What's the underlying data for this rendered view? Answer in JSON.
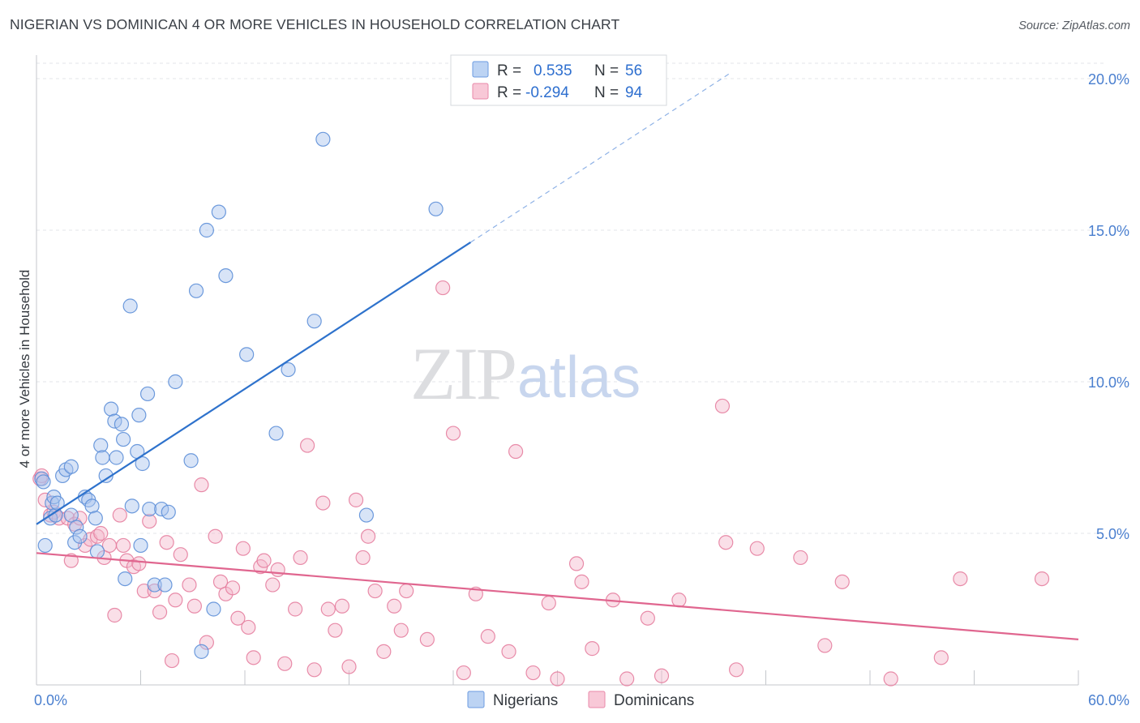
{
  "title": "NIGERIAN VS DOMINICAN 4 OR MORE VEHICLES IN HOUSEHOLD CORRELATION CHART",
  "source": "Source: ZipAtlas.com",
  "watermark": {
    "zip": "ZIP",
    "atlas": "atlas"
  },
  "colors": {
    "nigerians_fill": "#a9c4ee",
    "nigerians_stroke": "#5d8fd8",
    "nigerians_line": "#2e72cc",
    "dominicans_fill": "#f4b9cc",
    "dominicans_stroke": "#e57fa0",
    "dominicans_line": "#e0668f",
    "value_text": "#2e6fcf",
    "label_text": "#33383e"
  },
  "legend": {
    "rows": [
      {
        "r_label": "R =",
        "r_value": "0.535",
        "n_label": "N =",
        "n_value": "56"
      },
      {
        "r_label": "R =",
        "r_value": "-0.294",
        "n_label": "N =",
        "n_value": "94"
      }
    ]
  },
  "chart_data": {
    "type": "scatter",
    "title": "NIGERIAN VS DOMINICAN 4 OR MORE VEHICLES IN HOUSEHOLD CORRELATION CHART",
    "xlabel": "",
    "ylabel": "4 or more Vehicles in Household",
    "xlim": [
      0,
      60
    ],
    "ylim": [
      0,
      21
    ],
    "x_tick_labels": [
      {
        "value": 0,
        "label": "0.0%"
      },
      {
        "value": 60,
        "label": "60.0%"
      }
    ],
    "x_minor_ticks": [
      0,
      6,
      12,
      18,
      24,
      30,
      36,
      42,
      48,
      54,
      60
    ],
    "y_ticks": [
      {
        "value": 5,
        "label": "5.0%"
      },
      {
        "value": 10,
        "label": "10.0%"
      },
      {
        "value": 15,
        "label": "15.0%"
      },
      {
        "value": 20,
        "label": "20.0%"
      }
    ],
    "grid": true,
    "legend_position": "top-center",
    "series": [
      {
        "name": "Nigerians",
        "r": 0.535,
        "n": 56,
        "trend": {
          "x0": 0,
          "y0": 5.3,
          "x1": 25,
          "y1": 14.6,
          "dashed_to_x": 40,
          "dashed_to_y": 20.2
        },
        "points": [
          [
            0.3,
            6.8
          ],
          [
            0.4,
            6.7
          ],
          [
            0.5,
            4.6
          ],
          [
            0.8,
            5.5
          ],
          [
            0.9,
            6.0
          ],
          [
            1.0,
            6.2
          ],
          [
            1.1,
            5.6
          ],
          [
            1.2,
            6.0
          ],
          [
            1.5,
            6.9
          ],
          [
            1.7,
            7.1
          ],
          [
            2.0,
            7.2
          ],
          [
            2.0,
            5.6
          ],
          [
            2.2,
            4.7
          ],
          [
            2.3,
            5.2
          ],
          [
            2.5,
            4.9
          ],
          [
            2.8,
            6.2
          ],
          [
            3.0,
            6.1
          ],
          [
            3.2,
            5.9
          ],
          [
            3.4,
            5.5
          ],
          [
            3.5,
            4.4
          ],
          [
            3.7,
            7.9
          ],
          [
            3.8,
            7.5
          ],
          [
            4.0,
            6.9
          ],
          [
            4.3,
            9.1
          ],
          [
            4.5,
            8.7
          ],
          [
            4.6,
            7.5
          ],
          [
            4.9,
            8.6
          ],
          [
            5.0,
            8.1
          ],
          [
            5.1,
            3.5
          ],
          [
            5.4,
            12.5
          ],
          [
            5.5,
            5.9
          ],
          [
            5.8,
            7.7
          ],
          [
            5.9,
            8.9
          ],
          [
            6.0,
            4.6
          ],
          [
            6.1,
            7.3
          ],
          [
            6.4,
            9.6
          ],
          [
            6.5,
            5.8
          ],
          [
            6.8,
            3.3
          ],
          [
            7.2,
            5.8
          ],
          [
            7.4,
            3.3
          ],
          [
            7.6,
            5.7
          ],
          [
            8.0,
            10.0
          ],
          [
            8.9,
            7.4
          ],
          [
            9.2,
            13.0
          ],
          [
            9.5,
            1.1
          ],
          [
            9.8,
            15.0
          ],
          [
            10.2,
            2.5
          ],
          [
            10.5,
            15.6
          ],
          [
            10.9,
            13.5
          ],
          [
            12.1,
            10.9
          ],
          [
            13.8,
            8.3
          ],
          [
            14.5,
            10.4
          ],
          [
            16.0,
            12.0
          ],
          [
            16.5,
            18.0
          ],
          [
            19.0,
            5.6
          ],
          [
            23.0,
            15.7
          ]
        ]
      },
      {
        "name": "Dominicans",
        "r": -0.294,
        "n": 94,
        "trend": {
          "x0": 0,
          "y0": 4.35,
          "x1": 60,
          "y1": 1.5
        },
        "points": [
          [
            0.2,
            6.8
          ],
          [
            0.3,
            6.9
          ],
          [
            0.5,
            6.1
          ],
          [
            0.8,
            5.6
          ],
          [
            1.0,
            5.7
          ],
          [
            1.3,
            5.5
          ],
          [
            1.8,
            5.5
          ],
          [
            2.0,
            4.1
          ],
          [
            2.2,
            5.3
          ],
          [
            2.5,
            5.5
          ],
          [
            2.8,
            4.6
          ],
          [
            3.1,
            4.8
          ],
          [
            3.5,
            4.9
          ],
          [
            3.7,
            5.0
          ],
          [
            3.9,
            4.2
          ],
          [
            4.2,
            4.6
          ],
          [
            4.5,
            2.3
          ],
          [
            4.8,
            5.6
          ],
          [
            5.0,
            4.6
          ],
          [
            5.2,
            4.1
          ],
          [
            5.6,
            3.9
          ],
          [
            5.9,
            4.0
          ],
          [
            6.2,
            3.1
          ],
          [
            6.5,
            5.4
          ],
          [
            6.8,
            3.1
          ],
          [
            7.1,
            2.4
          ],
          [
            7.5,
            4.7
          ],
          [
            7.8,
            0.8
          ],
          [
            8.0,
            2.8
          ],
          [
            8.3,
            4.3
          ],
          [
            8.8,
            3.3
          ],
          [
            9.1,
            2.6
          ],
          [
            9.5,
            6.6
          ],
          [
            9.8,
            1.4
          ],
          [
            10.3,
            4.9
          ],
          [
            10.6,
            3.4
          ],
          [
            10.9,
            3.0
          ],
          [
            11.3,
            3.2
          ],
          [
            11.6,
            2.2
          ],
          [
            11.9,
            4.5
          ],
          [
            12.2,
            1.9
          ],
          [
            12.5,
            0.9
          ],
          [
            12.9,
            3.9
          ],
          [
            13.1,
            4.1
          ],
          [
            13.6,
            3.3
          ],
          [
            13.9,
            3.8
          ],
          [
            14.3,
            0.7
          ],
          [
            14.9,
            2.5
          ],
          [
            15.2,
            4.2
          ],
          [
            15.6,
            7.9
          ],
          [
            16.0,
            0.5
          ],
          [
            16.5,
            6.0
          ],
          [
            16.8,
            2.5
          ],
          [
            17.2,
            1.8
          ],
          [
            17.6,
            2.6
          ],
          [
            18.0,
            0.6
          ],
          [
            18.4,
            6.1
          ],
          [
            18.8,
            4.2
          ],
          [
            19.1,
            4.9
          ],
          [
            19.5,
            3.1
          ],
          [
            20.0,
            1.1
          ],
          [
            20.6,
            2.6
          ],
          [
            21.0,
            1.8
          ],
          [
            21.3,
            3.1
          ],
          [
            22.5,
            1.5
          ],
          [
            23.4,
            13.1
          ],
          [
            24.0,
            8.3
          ],
          [
            24.6,
            0.4
          ],
          [
            25.3,
            3.0
          ],
          [
            26.0,
            1.6
          ],
          [
            27.2,
            1.1
          ],
          [
            27.6,
            7.7
          ],
          [
            28.6,
            0.4
          ],
          [
            29.5,
            2.7
          ],
          [
            30.0,
            0.2
          ],
          [
            31.1,
            4.0
          ],
          [
            31.4,
            3.4
          ],
          [
            32.0,
            1.2
          ],
          [
            33.2,
            2.8
          ],
          [
            34.0,
            0.2
          ],
          [
            35.2,
            2.2
          ],
          [
            36.0,
            0.3
          ],
          [
            37.0,
            2.8
          ],
          [
            39.5,
            9.2
          ],
          [
            39.7,
            4.7
          ],
          [
            40.3,
            0.5
          ],
          [
            41.5,
            4.5
          ],
          [
            44.0,
            4.2
          ],
          [
            45.4,
            1.3
          ],
          [
            46.4,
            3.4
          ],
          [
            49.2,
            0.2
          ],
          [
            52.1,
            0.9
          ],
          [
            53.2,
            3.5
          ],
          [
            57.9,
            3.5
          ]
        ]
      }
    ]
  }
}
